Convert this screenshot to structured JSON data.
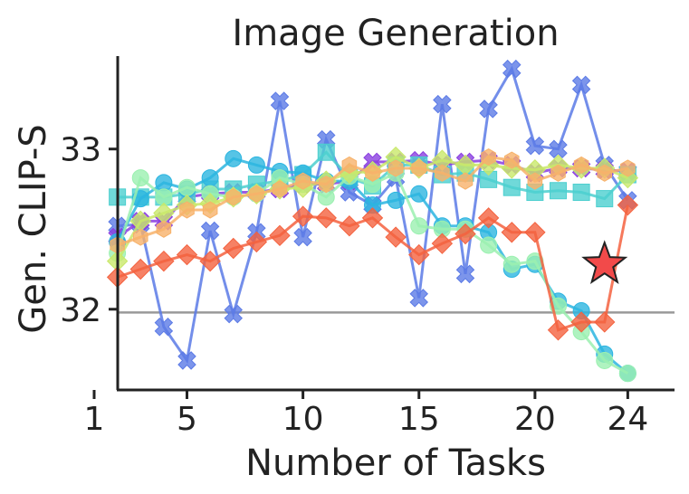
{
  "chart_data": {
    "type": "line",
    "title": "Image Generation",
    "xlabel": "Number of Tasks",
    "ylabel": "Gen. CLIP-S",
    "x_ticks": [
      1,
      5,
      10,
      15,
      20,
      24
    ],
    "y_ticks": [
      32,
      33
    ],
    "xlim": [
      1,
      25
    ],
    "ylim": [
      31.53,
      33.58
    ],
    "reference_line": 31.98,
    "grid": false,
    "legend": "none",
    "x": [
      2,
      3,
      4,
      5,
      6,
      7,
      8,
      9,
      10,
      11,
      12,
      13,
      14,
      15,
      16,
      17,
      18,
      19,
      20,
      21,
      22,
      23,
      24
    ],
    "series": [
      {
        "marker": "x-square",
        "color": "#5b7ae6",
        "values": [
          32.52,
          32.53,
          31.89,
          31.68,
          32.49,
          31.97,
          32.48,
          33.3,
          32.45,
          33.06,
          32.73,
          32.65,
          32.82,
          32.07,
          33.28,
          32.22,
          33.25,
          33.5,
          33.02,
          33.0,
          33.4,
          32.9,
          32.68
        ]
      },
      {
        "marker": "x-square",
        "color": "#8a3ee0",
        "values": [
          32.45,
          32.55,
          32.55,
          32.7,
          32.72,
          32.73,
          32.73,
          32.75,
          32.78,
          32.78,
          32.8,
          32.92,
          32.92,
          32.93,
          32.9,
          32.92,
          32.93,
          32.9,
          32.85,
          32.88,
          32.88,
          32.87,
          32.86
        ]
      },
      {
        "marker": "square",
        "color": "#4ccfcf",
        "values": [
          32.7,
          32.7,
          32.7,
          32.72,
          32.75,
          32.75,
          32.78,
          32.8,
          32.84,
          32.98,
          32.82,
          32.77,
          32.9,
          32.9,
          32.84,
          32.85,
          32.81,
          32.76,
          32.73,
          32.74,
          32.73,
          32.69,
          32.84
        ]
      },
      {
        "marker": "circle",
        "color": "#2cb5e0",
        "values": [
          32.42,
          32.69,
          32.79,
          32.75,
          32.82,
          32.94,
          32.9,
          32.86,
          32.85,
          32.8,
          32.8,
          32.65,
          32.68,
          32.72,
          32.52,
          32.52,
          32.48,
          32.25,
          32.28,
          32.05,
          31.99,
          31.72,
          31.6
        ]
      },
      {
        "marker": "circle",
        "color": "#9bf0b0",
        "values": [
          32.35,
          32.82,
          32.7,
          32.76,
          32.72,
          32.7,
          32.72,
          32.82,
          32.78,
          32.7,
          32.83,
          32.78,
          32.85,
          32.52,
          32.5,
          32.5,
          32.4,
          32.28,
          32.3,
          32.02,
          31.86,
          31.68,
          31.6
        ]
      },
      {
        "marker": "diamond",
        "color": "#c9e86a",
        "values": [
          32.3,
          32.55,
          32.6,
          32.65,
          32.66,
          32.7,
          32.72,
          32.75,
          32.76,
          32.8,
          32.85,
          32.86,
          32.95,
          32.88,
          32.93,
          32.9,
          32.9,
          32.88,
          32.87,
          32.9,
          32.88,
          32.88,
          32.82
        ]
      },
      {
        "marker": "hexagon",
        "color": "#f7b26a",
        "values": [
          32.4,
          32.45,
          32.5,
          32.62,
          32.62,
          32.7,
          32.72,
          32.75,
          32.8,
          32.78,
          32.9,
          32.85,
          32.88,
          32.88,
          32.85,
          32.8,
          32.95,
          32.93,
          32.8,
          32.85,
          32.9,
          32.85,
          32.88
        ]
      },
      {
        "marker": "diamond",
        "color": "#f4623f",
        "values": [
          32.2,
          32.25,
          32.3,
          32.34,
          32.3,
          32.38,
          32.42,
          32.46,
          32.58,
          32.57,
          32.52,
          32.57,
          32.45,
          32.34,
          32.41,
          32.47,
          32.57,
          32.48,
          32.48,
          31.87,
          31.92,
          31.92,
          32.65
        ]
      }
    ],
    "highlight": {
      "marker": "star",
      "color": "#f24a4a",
      "x": 23,
      "y": 32.28
    }
  }
}
